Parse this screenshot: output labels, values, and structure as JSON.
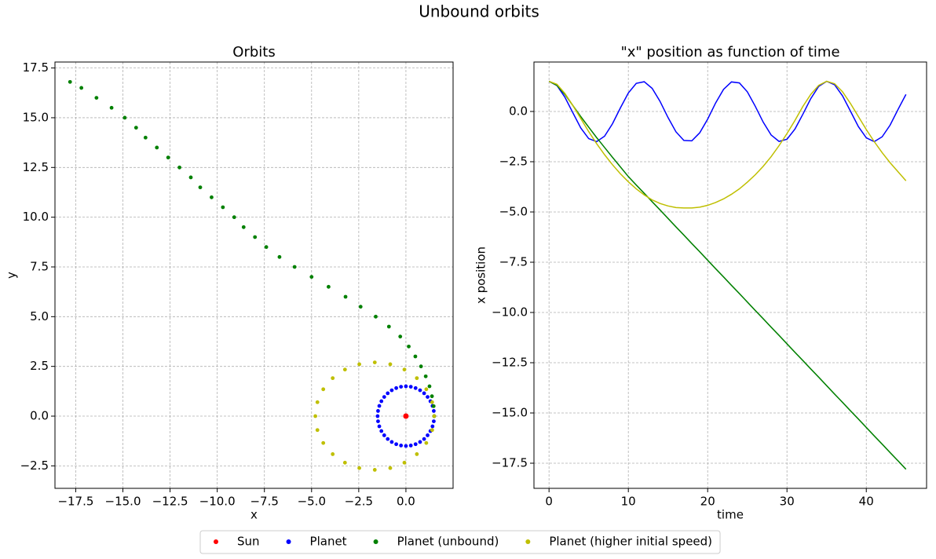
{
  "title": "Unbound orbits",
  "chart_data": [
    {
      "type": "scatter",
      "title": "Orbits",
      "x_label": "x",
      "y_label": "y",
      "xlim": [
        -18.6,
        2.5
      ],
      "ylim": [
        -3.63,
        17.8
      ],
      "grid": true,
      "legend": "bottom",
      "xticks": [
        {
          "value": -17.5,
          "label": "−17.5"
        },
        {
          "value": -15,
          "label": "−15.0"
        },
        {
          "value": -12.5,
          "label": "−12.5"
        },
        {
          "value": -10,
          "label": "−10.0"
        },
        {
          "value": -7.5,
          "label": "−7.5"
        },
        {
          "value": -5,
          "label": "−5.0"
        },
        {
          "value": -2.5,
          "label": "−2.5"
        },
        {
          "value": 0,
          "label": "0.0"
        }
      ],
      "yticks": [
        {
          "value": -2.5,
          "label": "−2.5"
        },
        {
          "value": 0,
          "label": "0.0"
        },
        {
          "value": 2.5,
          "label": "2.5"
        },
        {
          "value": 5,
          "label": "5.0"
        },
        {
          "value": 7.5,
          "label": "7.5"
        },
        {
          "value": 10,
          "label": "10.0"
        },
        {
          "value": 12.5,
          "label": "12.5"
        },
        {
          "value": 15,
          "label": "15.0"
        },
        {
          "value": 17.5,
          "label": "17.5"
        }
      ],
      "series": [
        {
          "name": "Sun",
          "color": "#ff0000",
          "x": [
            0
          ],
          "values": [
            0
          ]
        },
        {
          "name": "Planet",
          "color": "#0000ff",
          "x": [
            1.5,
            1.477,
            1.41,
            1.299,
            1.149,
            0.964,
            0.75,
            0.513,
            0.26,
            0,
            -0.26,
            -0.513,
            -0.75,
            -0.964,
            -1.149,
            -1.299,
            -1.41,
            -1.477,
            -1.5,
            -1.477,
            -1.41,
            -1.299,
            -1.149,
            -0.964,
            -0.75,
            -0.513,
            -0.26,
            0,
            0.26,
            0.513,
            0.75,
            0.964,
            1.149,
            1.299,
            1.41,
            1.477
          ],
          "values": [
            0,
            0.26,
            0.513,
            0.75,
            0.964,
            1.149,
            1.299,
            1.41,
            1.477,
            1.5,
            1.477,
            1.41,
            1.299,
            1.149,
            0.964,
            0.75,
            0.513,
            0.26,
            0,
            -0.26,
            -0.513,
            -0.75,
            -0.964,
            -1.149,
            -1.299,
            -1.41,
            -1.477,
            -1.5,
            -1.477,
            -1.41,
            -1.299,
            -1.149,
            -0.964,
            -0.75,
            -0.513,
            -0.26
          ]
        },
        {
          "name": "Planet (unbound)",
          "color": "#008000",
          "x": [
            1.5,
            1.47,
            1.38,
            1.25,
            1.05,
            0.8,
            0.5,
            0.15,
            -0.3,
            -0.9,
            -1.6,
            -2.4,
            -3.2,
            -4.1,
            -5.0,
            -5.9,
            -6.7,
            -7.4,
            -8.0,
            -8.6,
            -9.1,
            -9.7,
            -10.3,
            -10.9,
            -11.4,
            -12.0,
            -12.6,
            -13.2,
            -13.8,
            -14.3,
            -14.9,
            -15.6,
            -16.4,
            -17.2,
            -17.8
          ],
          "values": [
            0,
            0.5,
            1.0,
            1.5,
            2.0,
            2.5,
            3.0,
            3.5,
            4.0,
            4.5,
            5.0,
            5.5,
            6.0,
            6.5,
            7.0,
            7.5,
            8.0,
            8.5,
            9.0,
            9.5,
            10.0,
            10.5,
            11.0,
            11.5,
            12.0,
            12.5,
            13.0,
            13.5,
            14.0,
            14.5,
            15.0,
            15.5,
            16.0,
            16.5,
            16.8
          ]
        },
        {
          "name": "Planet (higher initial speed)",
          "color": "#bfbf00",
          "x": [
            1.5,
            1.39,
            1.08,
            0.58,
            -0.08,
            -0.83,
            -1.65,
            -2.47,
            -3.23,
            -3.88,
            -4.38,
            -4.69,
            -4.8,
            -4.69,
            -4.38,
            -3.88,
            -3.23,
            -2.47,
            -1.65,
            -0.83,
            -0.08,
            0.58,
            1.08,
            1.39
          ],
          "values": [
            0,
            0.7,
            1.35,
            1.91,
            2.34,
            2.61,
            2.7,
            2.61,
            2.34,
            1.91,
            1.35,
            0.7,
            0,
            -0.7,
            -1.35,
            -1.91,
            -2.34,
            -2.61,
            -2.7,
            -2.61,
            -2.34,
            -1.91,
            -1.35,
            -0.7
          ]
        }
      ]
    },
    {
      "type": "line",
      "title": "\"x\" position as function of time",
      "x_label": "time",
      "y_label": "x position",
      "xlim": [
        -1.9,
        47.6
      ],
      "ylim": [
        -18.75,
        2.46
      ],
      "grid": true,
      "xticks": [
        0,
        10,
        20,
        30,
        40
      ],
      "yticks": [
        {
          "value": 0,
          "label": "0.0"
        },
        {
          "value": -2.5,
          "label": "−2.5"
        },
        {
          "value": -5,
          "label": "−5.0"
        },
        {
          "value": -7.5,
          "label": "−7.5"
        },
        {
          "value": -10,
          "label": "−10.0"
        },
        {
          "value": -12.5,
          "label": "−12.5"
        },
        {
          "value": -15,
          "label": "−15.0"
        },
        {
          "value": -17.5,
          "label": "−17.5"
        }
      ],
      "x": [
        0,
        1,
        2,
        3,
        4,
        5,
        6,
        7,
        8,
        9,
        10,
        11,
        12,
        13,
        14,
        15,
        16,
        17,
        18,
        19,
        20,
        21,
        22,
        23,
        24,
        25,
        26,
        27,
        28,
        29,
        30,
        31,
        32,
        33,
        34,
        35,
        36,
        37,
        38,
        39,
        40,
        41,
        42,
        43,
        44,
        45
      ],
      "series": [
        {
          "color": "#0000ff",
          "values": [
            1.5,
            1.29,
            0.71,
            -0.06,
            -0.82,
            -1.35,
            -1.5,
            -1.23,
            -0.61,
            0.18,
            0.92,
            1.4,
            1.48,
            1.15,
            0.5,
            -0.3,
            -1.01,
            -1.44,
            -1.46,
            -1.06,
            -0.38,
            0.42,
            1.1,
            1.47,
            1.42,
            0.98,
            0.26,
            -0.53,
            -1.17,
            -1.49,
            -1.38,
            -0.88,
            -0.14,
            0.64,
            1.25,
            1.5,
            1.33,
            0.78,
            0.02,
            -0.75,
            -1.31,
            -1.5,
            -1.26,
            -0.68,
            0.1,
            0.85
          ]
        },
        {
          "color": "#008000",
          "values": [
            1.5,
            1.3,
            0.85,
            0.3,
            -0.25,
            -0.78,
            -1.3,
            -1.79,
            -2.28,
            -2.76,
            -3.24,
            -3.66,
            -4.07,
            -4.49,
            -4.9,
            -5.32,
            -5.74,
            -6.15,
            -6.57,
            -6.98,
            -7.4,
            -7.82,
            -8.23,
            -8.65,
            -9.06,
            -9.48,
            -9.9,
            -10.31,
            -10.73,
            -11.14,
            -11.56,
            -11.98,
            -12.39,
            -12.81,
            -13.22,
            -13.64,
            -14.06,
            -14.47,
            -14.89,
            -15.3,
            -15.72,
            -16.14,
            -16.55,
            -16.97,
            -17.38,
            -17.8
          ]
        },
        {
          "color": "#bfbf00",
          "values": [
            1.5,
            1.35,
            0.9,
            0.3,
            -0.35,
            -1.0,
            -1.6,
            -2.15,
            -2.65,
            -3.1,
            -3.5,
            -3.85,
            -4.15,
            -4.4,
            -4.58,
            -4.7,
            -4.78,
            -4.8,
            -4.8,
            -4.76,
            -4.67,
            -4.53,
            -4.35,
            -4.12,
            -3.85,
            -3.52,
            -3.15,
            -2.73,
            -2.25,
            -1.7,
            -1.1,
            -0.45,
            0.25,
            0.85,
            1.3,
            1.5,
            1.38,
            0.98,
            0.4,
            -0.25,
            -0.9,
            -1.5,
            -2.05,
            -2.55,
            -3.0,
            -3.45
          ]
        }
      ]
    }
  ]
}
